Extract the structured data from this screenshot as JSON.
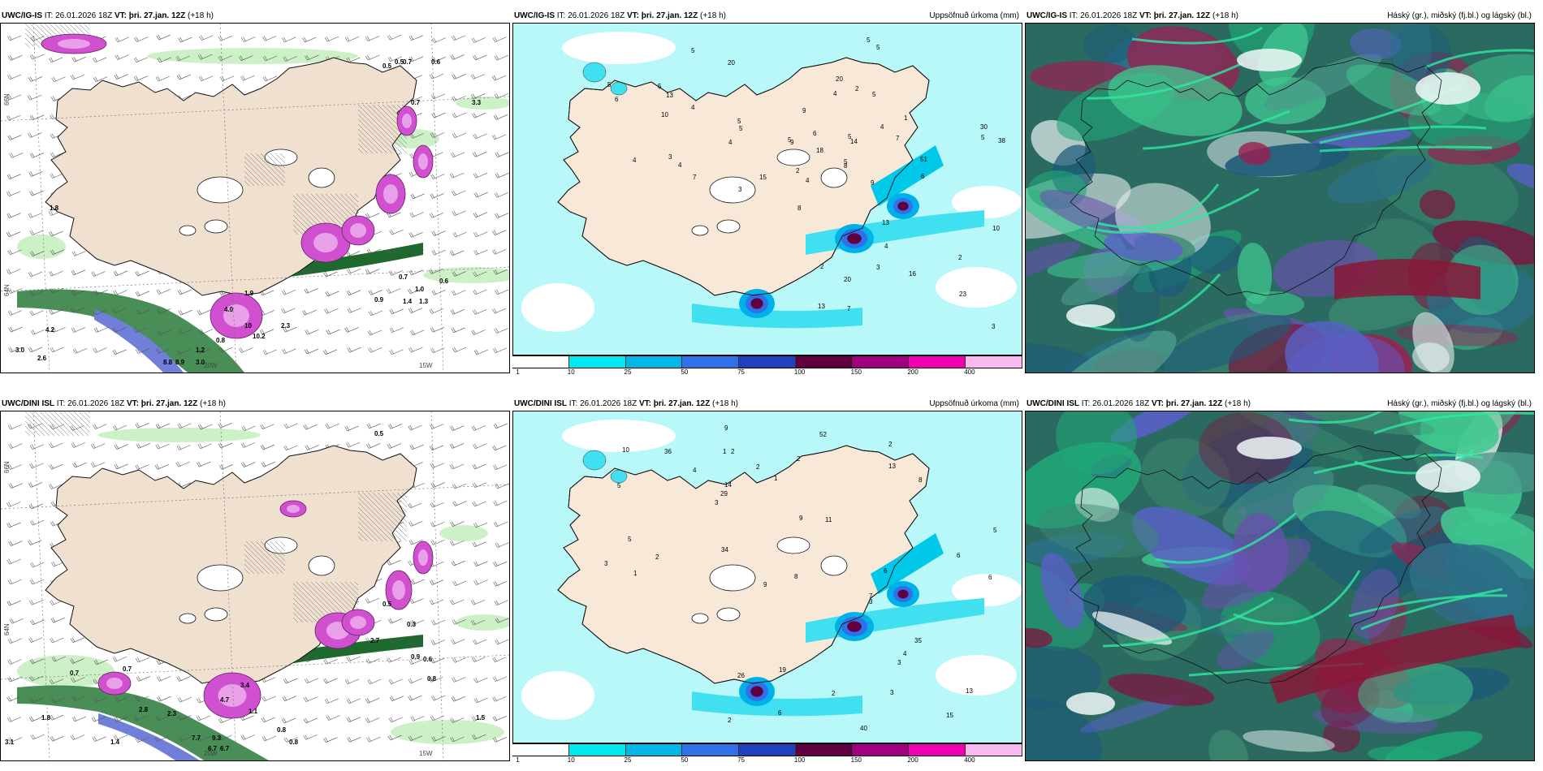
{
  "panels": {
    "p1": {
      "model": "UWC/IG-IS",
      "it_label": "IT:",
      "it": "26.01.2026 18Z",
      "vt_label": "VT:",
      "vt": "þri. 27.jan. 12Z",
      "lead": "(+18 h)",
      "right_title": ""
    },
    "p2": {
      "model": "UWC/IG-IS",
      "it_label": "IT:",
      "it": "26.01.2026 18Z",
      "vt_label": "VT:",
      "vt": "þri. 27.jan. 12Z",
      "lead": "(+18 h)",
      "right_title": "Uppsöfnuð úrkoma (mm)"
    },
    "p3": {
      "model": "UWC/IG-IS",
      "it_label": "IT:",
      "it": "26.01.2026 18Z",
      "vt_label": "VT:",
      "vt": "þri. 27.jan. 12Z",
      "lead": "(+18 h)",
      "right_title": "Háský (gr.), miðský (fj.bl.) og lágský (bl.)"
    },
    "p4": {
      "model": "UWC/DINI ISL",
      "it_label": "IT:",
      "it": "26.01.2026 18Z",
      "vt_label": "VT:",
      "vt": "þri. 27.jan. 12Z",
      "lead": "(+18 h)",
      "right_title": ""
    },
    "p5": {
      "model": "UWC/DINI ISL",
      "it_label": "IT:",
      "it": "26.01.2026 18Z",
      "vt_label": "VT:",
      "vt": "þri. 27.jan. 12Z",
      "lead": "(+18 h)",
      "right_title": "Uppsöfnuð úrkoma (mm)"
    },
    "p6": {
      "model": "UWC/DINI ISL",
      "it_label": "IT:",
      "it": "26.01.2026 18Z",
      "vt_label": "VT:",
      "vt": "þri. 27.jan. 12Z",
      "lead": "(+18 h)",
      "right_title": "Háský (gr.), miðský (fj.bl.) og lágský (bl.)"
    }
  },
  "axes": {
    "lat_66": "66N",
    "lat_64": "64N",
    "lon_20": "20W",
    "lon_15": "15W"
  },
  "colorbar": {
    "ticks": [
      "1",
      "10",
      "25",
      "50",
      "75",
      "100",
      "150",
      "200",
      "400"
    ],
    "colors": [
      "#ffffff",
      "#00e8f0",
      "#00b8e8",
      "#3070e8",
      "#2040c0",
      "#600040",
      "#a00080",
      "#f000b0",
      "#f8b8f0"
    ]
  },
  "precip_labels_p2": [
    "4",
    "5",
    "3",
    "5",
    "2",
    "2",
    "1",
    "4",
    "5",
    "4",
    "4",
    "5",
    "5",
    "5",
    "4",
    "5",
    "6",
    "5",
    "5",
    "5",
    "5",
    "9",
    "7",
    "8",
    "9",
    "20",
    "10",
    "13",
    "15",
    "20",
    "18",
    "30",
    "51",
    "13",
    "6",
    "7",
    "4",
    "3",
    "10",
    "16",
    "14",
    "13",
    "38",
    "23",
    "7",
    "2",
    "3",
    "20",
    "4",
    "5",
    "2",
    "9",
    "8",
    "6",
    "4",
    "3"
  ],
  "precip_labels_p5": [
    "6",
    "5",
    "2",
    "3",
    "2",
    "1",
    "1",
    "2",
    "5",
    "4",
    "3",
    "2",
    "2",
    "1",
    "11",
    "10",
    "9",
    "8",
    "9",
    "13",
    "29",
    "34",
    "14",
    "36",
    "52",
    "19",
    "15",
    "13",
    "35",
    "40",
    "8",
    "9",
    "3",
    "6",
    "6",
    "7",
    "2",
    "2",
    "3",
    "26",
    "6",
    "5",
    "4",
    "3"
  ],
  "field_labels_p1": [
    "0.5",
    "0.5",
    "0.7",
    "0.6",
    "0.7",
    "3.3",
    "1.8",
    "4.0",
    "1.9",
    "10",
    "10.2",
    "0.8",
    "2.3",
    "4.2",
    "3.0",
    "2.6",
    "8.8",
    "8.9",
    "3.0",
    "1.2",
    "0.7",
    "1.0",
    "0.9",
    "0.6",
    "1.3",
    "1.4"
  ],
  "field_labels_p4": [
    "0.5",
    "0.7",
    "0.7",
    "4.7",
    "3.4",
    "1.1",
    "0.8",
    "2.8",
    "2.3",
    "7.7",
    "9.3",
    "6.7",
    "6.7",
    "0.8",
    "1.4",
    "3.1",
    "0.9",
    "0.6",
    "1.8",
    "0.8",
    "1.5",
    "0.5",
    "2.7",
    "0.3"
  ]
}
